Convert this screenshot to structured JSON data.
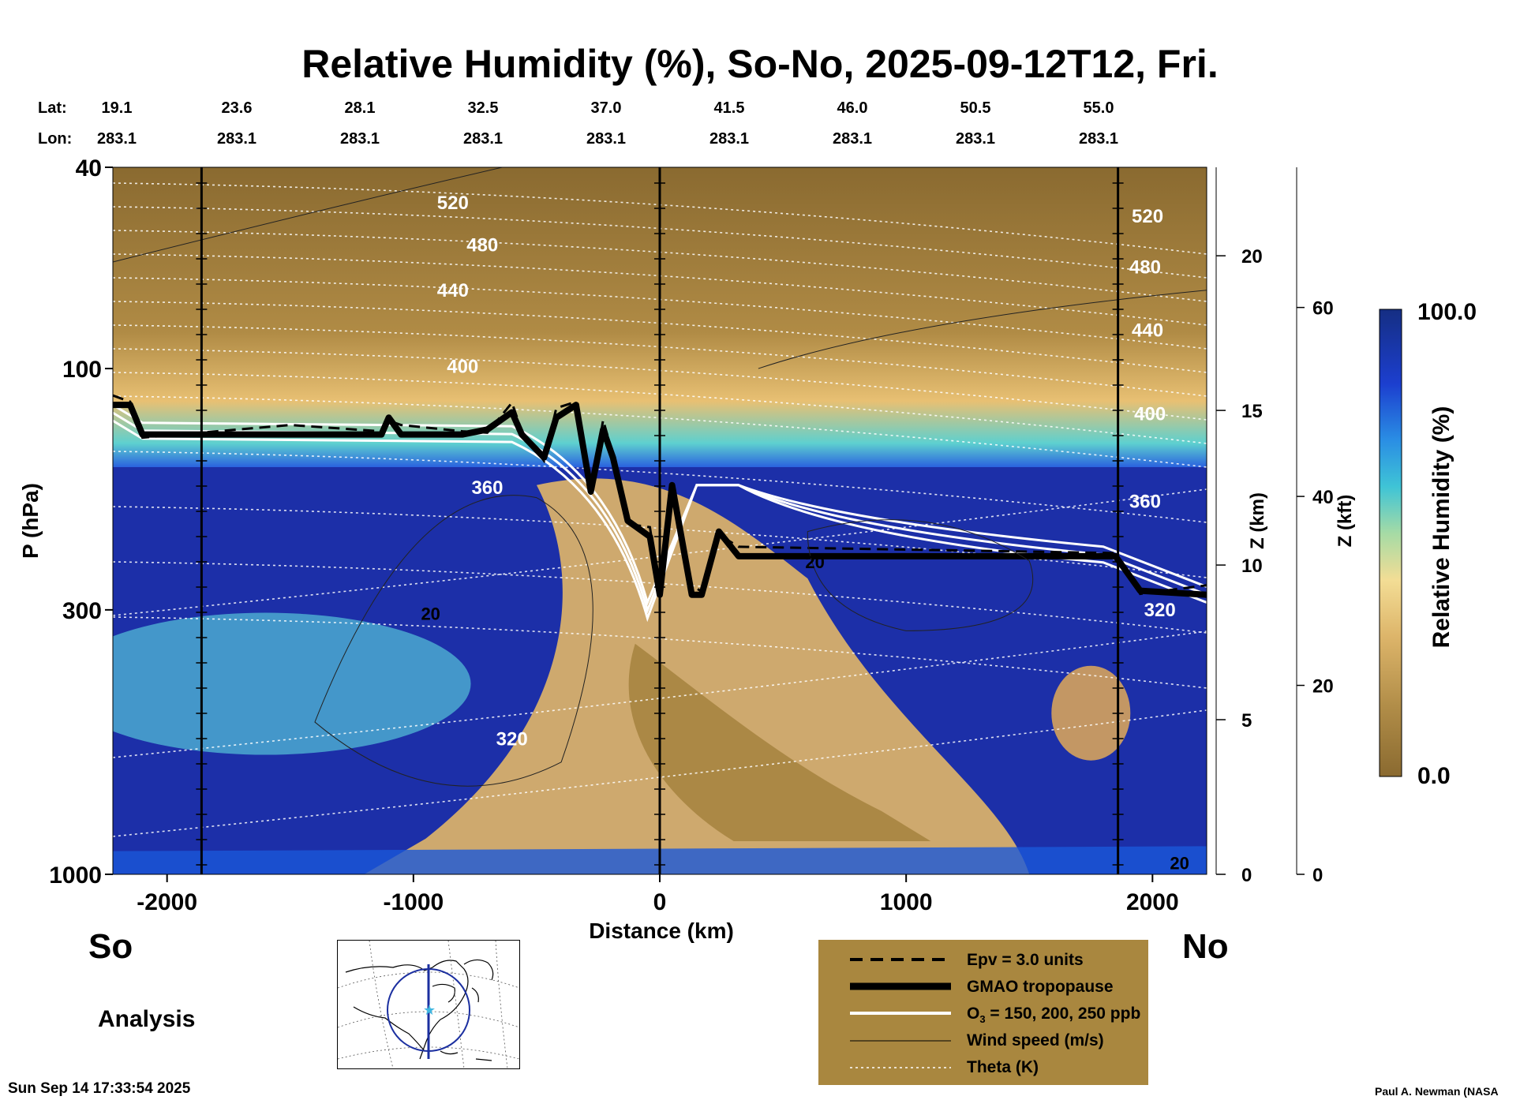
{
  "title": "Relative Humidity (%), So-No, 2025-09-12T12, Fri.",
  "lat_label": "Lat:",
  "lon_label": "Lon:",
  "lat_values": [
    "19.1",
    "23.6",
    "28.1",
    "32.5",
    "37.0",
    "41.5",
    "46.0",
    "50.5",
    "55.0"
  ],
  "lon_values": [
    "283.1",
    "283.1",
    "283.1",
    "283.1",
    "283.1",
    "283.1",
    "283.1",
    "283.1",
    "283.1"
  ],
  "south_label": "So",
  "north_label": "No",
  "analysis_label": "Analysis",
  "timestamp": "Sun Sep 14 17:33:54 2025",
  "credit": "Paul A. Newman (NASA",
  "legend": {
    "items": [
      {
        "key": "epv",
        "label": "Epv = 3.0 units"
      },
      {
        "key": "tropopause",
        "label": "GMAO tropopause"
      },
      {
        "key": "o3",
        "label_main": "O",
        "label_sub": "3",
        "label_rest": " = 150, 200, 250 ppb"
      },
      {
        "key": "wind",
        "label": "Wind speed (m/s)"
      },
      {
        "key": "theta",
        "label": "Theta (K)"
      }
    ]
  },
  "colors": {
    "legend_bg": "#a9873f",
    "dry": "#8a6a30",
    "moist": "#1c2fa8"
  },
  "chart_data": {
    "type": "heatmap",
    "title": "Relative Humidity (%), So-No, 2025-09-12T12, Fri.",
    "variable": "Relative Humidity (%)",
    "xlabel": "Distance (km)",
    "ylabel": "P (hPa)",
    "y2label": "Z (km)",
    "y3label": "Z (kft)",
    "xlim": [
      -2220,
      2220
    ],
    "ylim_hpa": [
      1000,
      40
    ],
    "y_scale": "log",
    "x_ticks": [
      -2000,
      -1000,
      0,
      1000,
      2000
    ],
    "x_tick_labels": [
      "-2000",
      "-1000",
      "0",
      "1000",
      "2000"
    ],
    "y_ticks_hpa": [
      1000,
      300,
      100,
      40
    ],
    "y_tick_labels": [
      "1000",
      "300",
      "100",
      "40"
    ],
    "z_km_ticks": [
      0,
      5,
      10,
      15,
      20
    ],
    "z_kft_ticks": [
      0,
      20,
      40,
      60
    ],
    "colorbar": {
      "min": 0.0,
      "max": 100.0,
      "min_label": "0.0",
      "max_label": "100.0",
      "label": "Relative Humidity (%)"
    },
    "vertical_markers_km": [
      -1860,
      0,
      1860
    ],
    "theta_contour_labels": [
      {
        "value": "520",
        "x": -840,
        "p": 47
      },
      {
        "value": "480",
        "x": -720,
        "p": 57
      },
      {
        "value": "440",
        "x": -840,
        "p": 70
      },
      {
        "value": "400",
        "x": -800,
        "p": 99
      },
      {
        "value": "360",
        "x": -700,
        "p": 172
      },
      {
        "value": "320",
        "x": -600,
        "p": 540
      },
      {
        "value": "520",
        "x": 1980,
        "p": 50
      },
      {
        "value": "480",
        "x": 1970,
        "p": 63
      },
      {
        "value": "440",
        "x": 1980,
        "p": 84
      },
      {
        "value": "400",
        "x": 1990,
        "p": 123
      },
      {
        "value": "360",
        "x": 1970,
        "p": 183
      },
      {
        "value": "320",
        "x": 2030,
        "p": 300
      }
    ],
    "wind_contour_labels": [
      {
        "value": "20",
        "x": -930,
        "p": 305
      },
      {
        "value": "20",
        "x": 630,
        "p": 241
      },
      {
        "value": "20",
        "x": 2110,
        "p": 950
      }
    ],
    "tropopause_hpa": [
      {
        "x": -2220,
        "p": 118
      },
      {
        "x": -2150,
        "p": 118
      },
      {
        "x": -2100,
        "p": 135
      },
      {
        "x": -1500,
        "p": 135
      },
      {
        "x": -1130,
        "p": 135
      },
      {
        "x": -1100,
        "p": 125
      },
      {
        "x": -1050,
        "p": 135
      },
      {
        "x": -800,
        "p": 135
      },
      {
        "x": -700,
        "p": 132
      },
      {
        "x": -600,
        "p": 122
      },
      {
        "x": -560,
        "p": 135
      },
      {
        "x": -470,
        "p": 150
      },
      {
        "x": -420,
        "p": 125
      },
      {
        "x": -340,
        "p": 118
      },
      {
        "x": -280,
        "p": 175
      },
      {
        "x": -230,
        "p": 132
      },
      {
        "x": -190,
        "p": 150
      },
      {
        "x": -130,
        "p": 200
      },
      {
        "x": -40,
        "p": 215
      },
      {
        "x": 0,
        "p": 280
      },
      {
        "x": 50,
        "p": 170
      },
      {
        "x": 130,
        "p": 280
      },
      {
        "x": 170,
        "p": 280
      },
      {
        "x": 240,
        "p": 210
      },
      {
        "x": 320,
        "p": 235
      },
      {
        "x": 1850,
        "p": 235
      },
      {
        "x": 1950,
        "p": 275
      },
      {
        "x": 2220,
        "p": 280
      }
    ]
  }
}
